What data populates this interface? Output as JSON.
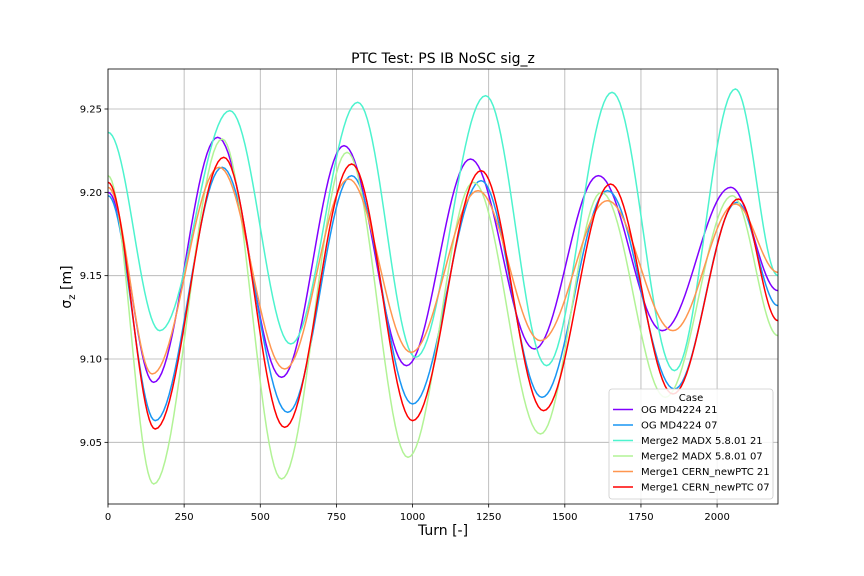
{
  "chart_data": {
    "type": "line",
    "title": "PTC Test: PS IB NoSC sig_z",
    "xlabel": "Turn [-]",
    "ylabel_main": "σ",
    "ylabel_sub": "z",
    "ylabel_unit": " [m]",
    "xlim": [
      0,
      2200
    ],
    "ylim": [
      9.013,
      9.274
    ],
    "xticks": [
      0,
      250,
      500,
      750,
      1000,
      1250,
      1500,
      1750,
      2000
    ],
    "yticks": [
      9.05,
      9.1,
      9.15,
      9.2,
      9.25
    ],
    "ytick_labels": [
      "9.05",
      "9.10",
      "9.15",
      "9.20",
      "9.25"
    ],
    "grid": true,
    "legend": {
      "title": "Case",
      "placement": "lower-right"
    },
    "series": [
      {
        "name": "OG MD4224 21",
        "color": "#8000ff",
        "x": [
          0,
          150,
          360,
          570,
          775,
          980,
          1190,
          1400,
          1610,
          1820,
          2045,
          2200
        ],
        "y": [
          9.2,
          9.086,
          9.233,
          9.089,
          9.228,
          9.096,
          9.22,
          9.106,
          9.21,
          9.117,
          9.203,
          9.141
        ]
      },
      {
        "name": "OG MD4224 07",
        "color": "#1996f3",
        "x": [
          0,
          155,
          375,
          590,
          800,
          1000,
          1225,
          1425,
          1640,
          1860,
          2065,
          2200
        ],
        "y": [
          9.198,
          9.063,
          9.215,
          9.068,
          9.21,
          9.073,
          9.207,
          9.077,
          9.201,
          9.082,
          9.194,
          9.132
        ]
      },
      {
        "name": "Merge2 MADX 5.8.01 21",
        "color": "#4df3ce",
        "x": [
          0,
          170,
          400,
          600,
          820,
          1010,
          1240,
          1440,
          1655,
          1860,
          2060,
          2200
        ],
        "y": [
          9.236,
          9.117,
          9.249,
          9.109,
          9.254,
          9.101,
          9.258,
          9.096,
          9.26,
          9.093,
          9.262,
          9.15
        ]
      },
      {
        "name": "Merge2 MADX 5.8.01 07",
        "color": "#b2f396",
        "x": [
          0,
          150,
          375,
          570,
          785,
          985,
          1200,
          1420,
          1620,
          1830,
          2050,
          2200
        ],
        "y": [
          9.21,
          9.025,
          9.232,
          9.028,
          9.224,
          9.041,
          9.206,
          9.055,
          9.2,
          9.077,
          9.198,
          9.114
        ]
      },
      {
        "name": "Merge1 CERN_newPTC 21",
        "color": "#ff964f",
        "x": [
          0,
          145,
          365,
          580,
          790,
          995,
          1215,
          1420,
          1640,
          1855,
          2060,
          2200
        ],
        "y": [
          9.203,
          9.091,
          9.215,
          9.094,
          9.208,
          9.104,
          9.201,
          9.111,
          9.195,
          9.117,
          9.193,
          9.152
        ]
      },
      {
        "name": "Merge1 CERN_newPTC 07",
        "color": "#ff0000",
        "x": [
          0,
          155,
          380,
          580,
          800,
          1000,
          1225,
          1430,
          1650,
          1855,
          2070,
          2200
        ],
        "y": [
          9.206,
          9.058,
          9.221,
          9.059,
          9.217,
          9.063,
          9.213,
          9.069,
          9.205,
          9.079,
          9.196,
          9.123
        ]
      }
    ]
  }
}
